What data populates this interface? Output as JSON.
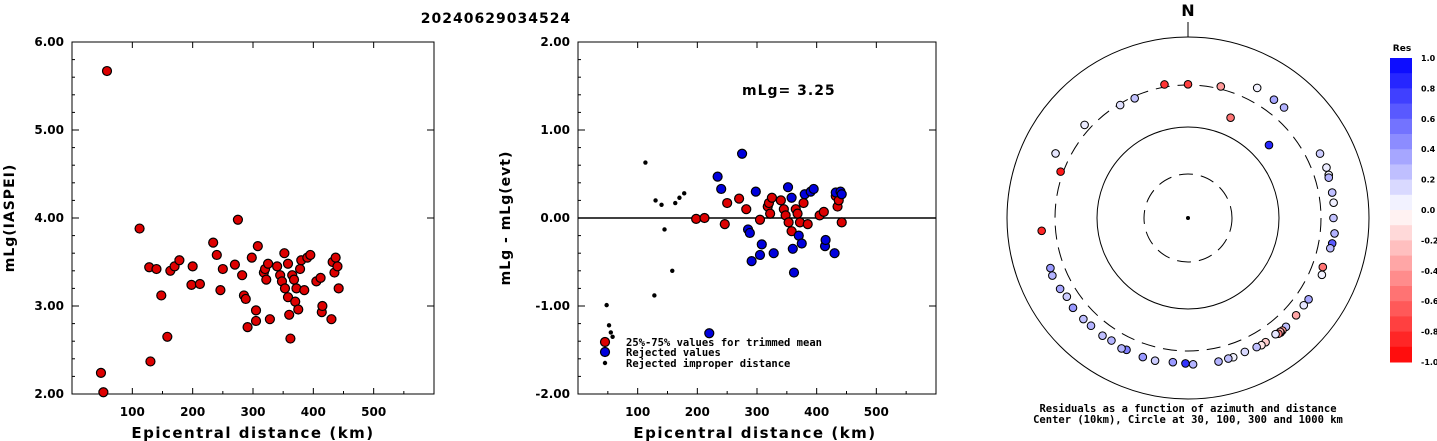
{
  "title": "20240629034524",
  "chart_data": [
    {
      "type": "scatter",
      "xlabel": "Epicentral distance (km)",
      "ylabel": "mLg(IASPEI)",
      "xlim": [
        0,
        600
      ],
      "ylim": [
        2.0,
        6.0
      ],
      "xticks": [
        "100",
        "200",
        "300",
        "400",
        "500"
      ],
      "yticks": [
        "2.00",
        "3.00",
        "4.00",
        "5.00",
        "6.00"
      ],
      "series": [
        {
          "color": "#dd0000",
          "points": [
            [
              48,
              2.24
            ],
            [
              52,
              2.02
            ],
            [
              58,
              5.67
            ],
            [
              112,
              3.88
            ],
            [
              128,
              3.44
            ],
            [
              130,
              2.37
            ],
            [
              140,
              3.42
            ],
            [
              148,
              3.12
            ],
            [
              158,
              2.65
            ],
            [
              163,
              3.4
            ],
            [
              170,
              3.45
            ],
            [
              178,
              3.52
            ],
            [
              198,
              3.24
            ],
            [
              200,
              3.45
            ],
            [
              212,
              3.25
            ],
            [
              234,
              3.72
            ],
            [
              240,
              3.58
            ],
            [
              246,
              3.18
            ],
            [
              250,
              3.42
            ],
            [
              270,
              3.47
            ],
            [
              275,
              3.98
            ],
            [
              282,
              3.35
            ],
            [
              285,
              3.12
            ],
            [
              288,
              3.08
            ],
            [
              291,
              2.76
            ],
            [
              298,
              3.55
            ],
            [
              305,
              2.95
            ],
            [
              305,
              2.83
            ],
            [
              308,
              3.68
            ],
            [
              318,
              3.38
            ],
            [
              320,
              3.42
            ],
            [
              322,
              3.3
            ],
            [
              325,
              3.48
            ],
            [
              328,
              2.85
            ],
            [
              340,
              3.45
            ],
            [
              345,
              3.35
            ],
            [
              348,
              3.28
            ],
            [
              352,
              3.6
            ],
            [
              353,
              3.2
            ],
            [
              358,
              3.48
            ],
            [
              358,
              3.1
            ],
            [
              360,
              2.9
            ],
            [
              362,
              2.63
            ],
            [
              365,
              3.35
            ],
            [
              368,
              3.3
            ],
            [
              370,
              3.05
            ],
            [
              372,
              3.2
            ],
            [
              375,
              2.96
            ],
            [
              378,
              3.42
            ],
            [
              380,
              3.52
            ],
            [
              385,
              3.18
            ],
            [
              390,
              3.55
            ],
            [
              395,
              3.58
            ],
            [
              405,
              3.28
            ],
            [
              412,
              3.32
            ],
            [
              414,
              2.93
            ],
            [
              415,
              3.0
            ],
            [
              430,
              2.85
            ],
            [
              432,
              3.5
            ],
            [
              435,
              3.38
            ],
            [
              437,
              3.55
            ],
            [
              440,
              3.45
            ],
            [
              442,
              3.2
            ]
          ]
        }
      ]
    },
    {
      "type": "scatter",
      "xlabel": "Epicentral distance (km)",
      "ylabel": "mLg - mLg(evt)",
      "annotation": "mLg= 3.25",
      "xlim": [
        0,
        600
      ],
      "ylim": [
        -2.0,
        2.0
      ],
      "xticks": [
        "100",
        "200",
        "300",
        "400",
        "500"
      ],
      "yticks": [
        "-2.00",
        "-1.00",
        "0.00",
        "1.00",
        "2.00"
      ],
      "legend": [
        "25%-75% values for trimmed mean",
        "Rejected values",
        "Rejected improper distance"
      ],
      "series": [
        {
          "name": "25%-75% values for trimmed mean",
          "color": "#dd0000",
          "points": [
            [
              198,
              -0.01
            ],
            [
              212,
              0.0
            ],
            [
              246,
              -0.07
            ],
            [
              250,
              0.17
            ],
            [
              270,
              0.22
            ],
            [
              282,
              0.1
            ],
            [
              305,
              -0.02
            ],
            [
              318,
              0.13
            ],
            [
              320,
              0.17
            ],
            [
              322,
              0.05
            ],
            [
              325,
              0.23
            ],
            [
              340,
              0.2
            ],
            [
              345,
              0.1
            ],
            [
              348,
              0.03
            ],
            [
              353,
              -0.05
            ],
            [
              358,
              -0.15
            ],
            [
              365,
              0.1
            ],
            [
              368,
              0.05
            ],
            [
              372,
              -0.05
            ],
            [
              378,
              0.17
            ],
            [
              385,
              -0.07
            ],
            [
              405,
              0.03
            ],
            [
              412,
              0.07
            ],
            [
              432,
              0.25
            ],
            [
              435,
              0.13
            ],
            [
              437,
              0.2
            ],
            [
              442,
              -0.05
            ]
          ]
        },
        {
          "name": "Rejected values",
          "color": "#0000dd",
          "points": [
            [
              220,
              -1.31
            ],
            [
              234,
              0.47
            ],
            [
              240,
              0.33
            ],
            [
              275,
              0.73
            ],
            [
              285,
              -0.13
            ],
            [
              288,
              -0.17
            ],
            [
              291,
              -0.49
            ],
            [
              298,
              0.3
            ],
            [
              305,
              -0.42
            ],
            [
              308,
              -0.3
            ],
            [
              328,
              -0.4
            ],
            [
              352,
              0.35
            ],
            [
              358,
              0.23
            ],
            [
              360,
              -0.35
            ],
            [
              362,
              -0.62
            ],
            [
              370,
              -0.2
            ],
            [
              375,
              -0.29
            ],
            [
              380,
              0.27
            ],
            [
              390,
              0.3
            ],
            [
              395,
              0.33
            ],
            [
              414,
              -0.32
            ],
            [
              415,
              -0.25
            ],
            [
              430,
              -0.4
            ],
            [
              432,
              0.29
            ],
            [
              440,
              0.3
            ],
            [
              442,
              0.27
            ]
          ]
        },
        {
          "name": "Rejected improper distance",
          "color": "#000000",
          "points": [
            [
              48,
              -0.99
            ],
            [
              52,
              -1.22
            ],
            [
              55,
              -1.3
            ],
            [
              58,
              -1.35
            ],
            [
              113,
              0.63
            ],
            [
              128,
              -0.88
            ],
            [
              130,
              0.2
            ],
            [
              140,
              0.15
            ],
            [
              145,
              -0.13
            ],
            [
              158,
              -0.6
            ],
            [
              163,
              0.17
            ],
            [
              170,
              0.23
            ],
            [
              178,
              0.28
            ]
          ]
        }
      ]
    },
    {
      "type": "scatter",
      "title": "N",
      "caption_line1": "Residuals as a function of azimuth and distance",
      "caption_line2": "Center (10km), Circle at 30, 100, 300 and 1000 km",
      "colorbar": {
        "title": "Res",
        "ticks": [
          "1.0",
          "0.8",
          "0.6",
          "0.4",
          "0.2",
          "0.0",
          "-0.2",
          "-0.4",
          "-0.6",
          "-0.8",
          "-1.0"
        ]
      },
      "points": [
        [
          329,
          290,
          0.12
        ],
        [
          336,
          285,
          0.24
        ],
        [
          350,
          320,
          -0.8
        ],
        [
          0,
          305,
          -0.75
        ],
        [
          14,
          320,
          -0.4
        ],
        [
          23,
          160,
          -0.55
        ],
        [
          28,
          430,
          0.05
        ],
        [
          36,
          418,
          0.35
        ],
        [
          41,
          420,
          0.3
        ],
        [
          48,
          160,
          0.85
        ],
        [
          64,
          425,
          0.2
        ],
        [
          70,
          430,
          0.08
        ],
        [
          73,
          428,
          0.05
        ],
        [
          74,
          420,
          0.3
        ],
        [
          80,
          420,
          0.25
        ],
        [
          84,
          420,
          0.06
        ],
        [
          90,
          410,
          0.24
        ],
        [
          96,
          430,
          0.3
        ],
        [
          100,
          420,
          0.65
        ],
        [
          102,
          410,
          0.28
        ],
        [
          110,
          390,
          -0.55
        ],
        [
          113,
          410,
          0.05
        ],
        [
          124,
          410,
          0.35
        ],
        [
          127,
          405,
          0.1
        ],
        [
          132,
          410,
          -0.35
        ],
        [
          138,
          420,
          0.25
        ],
        [
          140,
          425,
          -0.4
        ],
        [
          141,
          430,
          -0.45
        ],
        [
          141,
          420,
          -0.3
        ],
        [
          142,
          425,
          -0.5
        ],
        [
          143,
          410,
          0.1
        ],
        [
          148,
          420,
          -0.2
        ],
        [
          150,
          425,
          -0.1
        ],
        [
          152,
          418,
          0.25
        ],
        [
          157,
          410,
          0.15
        ],
        [
          162,
          420,
          0.05
        ],
        [
          164,
          418,
          0.25
        ],
        [
          168,
          424,
          0.3
        ],
        [
          178,
          420,
          0.3
        ],
        [
          181,
          410,
          0.8
        ],
        [
          186,
          405,
          0.4
        ],
        [
          193,
          420,
          0.2
        ],
        [
          198,
          418,
          0.4
        ],
        [
          205,
          410,
          0.5
        ],
        [
          207,
          420,
          0.3
        ],
        [
          212,
          400,
          0.3
        ],
        [
          216,
          410,
          0.25
        ],
        [
          222,
          405,
          0.3
        ],
        [
          226,
          410,
          0.25
        ],
        [
          232,
          415,
          0.4
        ],
        [
          237,
          400,
          0.2
        ],
        [
          241,
          418,
          0.35
        ],
        [
          247,
          430,
          0.3
        ],
        [
          250,
          420,
          0.4
        ],
        [
          265,
          425,
          -0.85
        ],
        [
          296,
          430,
          0.1
        ],
        [
          290,
          320,
          -0.9
        ],
        [
          312,
          350,
          0.08
        ]
      ]
    }
  ]
}
